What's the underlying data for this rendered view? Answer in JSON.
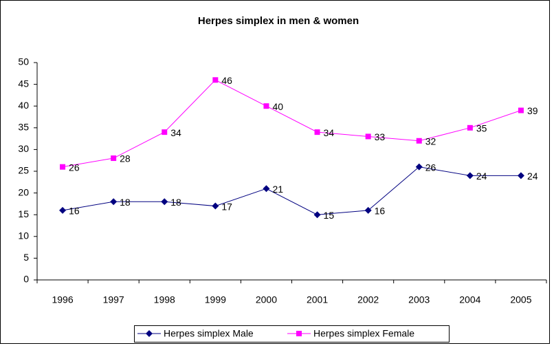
{
  "chart_data": {
    "type": "line",
    "title": "Herpes simplex in men & women",
    "categories": [
      "1996",
      "1997",
      "1998",
      "1999",
      "2000",
      "2001",
      "2002",
      "2003",
      "2004",
      "2005"
    ],
    "series": [
      {
        "name": "Herpes simplex Male",
        "color": "#000080",
        "marker": "diamond",
        "values": [
          16,
          18,
          18,
          17,
          21,
          15,
          16,
          26,
          24,
          24
        ]
      },
      {
        "name": "Herpes simplex Female",
        "color": "#ff00ff",
        "marker": "square",
        "values": [
          26,
          28,
          34,
          46,
          40,
          34,
          33,
          32,
          35,
          39
        ]
      }
    ],
    "ylim": [
      0,
      50
    ],
    "yticks": [
      0,
      5,
      10,
      15,
      20,
      25,
      30,
      35,
      40,
      45,
      50
    ],
    "grid": false,
    "legend": "bottom"
  }
}
